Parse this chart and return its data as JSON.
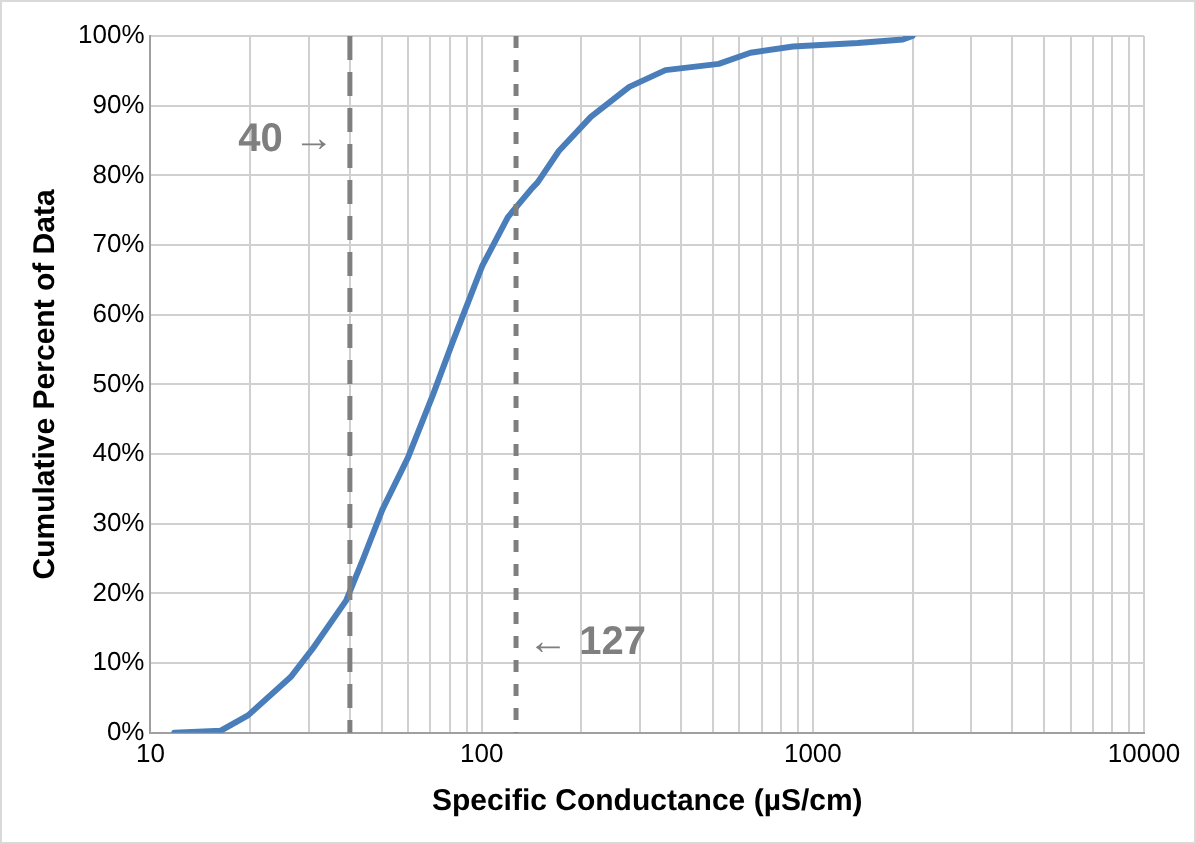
{
  "chart_data": {
    "type": "line",
    "xlabel": "Specific Conductance (µS/cm)",
    "ylabel": "Cumulative Percent of Data",
    "log": "x",
    "grid": true,
    "legend": false,
    "marker": "none",
    "line_style": "solid",
    "xlim": [
      10,
      10000
    ],
    "xticks": [
      10,
      {
        "value": 20,
        "label": null
      },
      {
        "value": 30,
        "label": null
      },
      {
        "value": 40,
        "label": null
      },
      {
        "value": 50,
        "label": null
      },
      {
        "value": 60,
        "label": null
      },
      {
        "value": 70,
        "label": null
      },
      {
        "value": 80,
        "label": null
      },
      {
        "value": 90,
        "label": null
      },
      100,
      {
        "value": 200,
        "label": null
      },
      {
        "value": 300,
        "label": null
      },
      {
        "value": 400,
        "label": null
      },
      {
        "value": 500,
        "label": null
      },
      {
        "value": 600,
        "label": null
      },
      {
        "value": 700,
        "label": null
      },
      {
        "value": 800,
        "label": null
      },
      {
        "value": 900,
        "label": null
      },
      1000,
      {
        "value": 2000,
        "label": null
      },
      {
        "value": 3000,
        "label": null
      },
      {
        "value": 4000,
        "label": null
      },
      {
        "value": 5000,
        "label": null
      },
      {
        "value": 6000,
        "label": null
      },
      {
        "value": 7000,
        "label": null
      },
      {
        "value": 8000,
        "label": null
      },
      {
        "value": 9000,
        "label": null
      },
      10000
    ],
    "ylim": [
      0,
      100
    ],
    "yticks": [
      {
        "value": 0,
        "label": "0%"
      },
      {
        "value": 10,
        "label": "10%"
      },
      {
        "value": 20,
        "label": "20%"
      },
      {
        "value": 30,
        "label": "30%"
      },
      {
        "value": 40,
        "label": "40%"
      },
      {
        "value": 50,
        "label": "50%"
      },
      {
        "value": 60,
        "label": "60%"
      },
      {
        "value": 70,
        "label": "70%"
      },
      {
        "value": 80,
        "label": "80%"
      },
      {
        "value": 90,
        "label": "90%"
      },
      {
        "value": 100,
        "label": "100%"
      }
    ],
    "series": [
      {
        "color": "#4a7ebb",
        "x": [
          11.8,
          16.3,
          19.7,
          26.5,
          30.8,
          39,
          43.9,
          50.1,
          59.9,
          71.4,
          81.6,
          100.4,
          120,
          141,
          147.6,
          171,
          213.6,
          279,
          359,
          520,
          648,
          871,
          1366,
          1870,
          2000
        ],
        "values": [
          0,
          0.3,
          2.5,
          8,
          12,
          19,
          25,
          32,
          39.5,
          48.6,
          56,
          67,
          74,
          78,
          79,
          83.5,
          88.4,
          92.7,
          95.1,
          96,
          97.6,
          98.5,
          99,
          99.5,
          100
        ]
      }
    ],
    "ref_lines": [
      {
        "axis": "x",
        "value": 40,
        "label": "40 →",
        "color": "#7f7f7f",
        "line_style": "dashed"
      },
      {
        "axis": "x",
        "value": 127,
        "label": "← 127",
        "color": "#7f7f7f",
        "line_style": "dotted"
      }
    ]
  }
}
